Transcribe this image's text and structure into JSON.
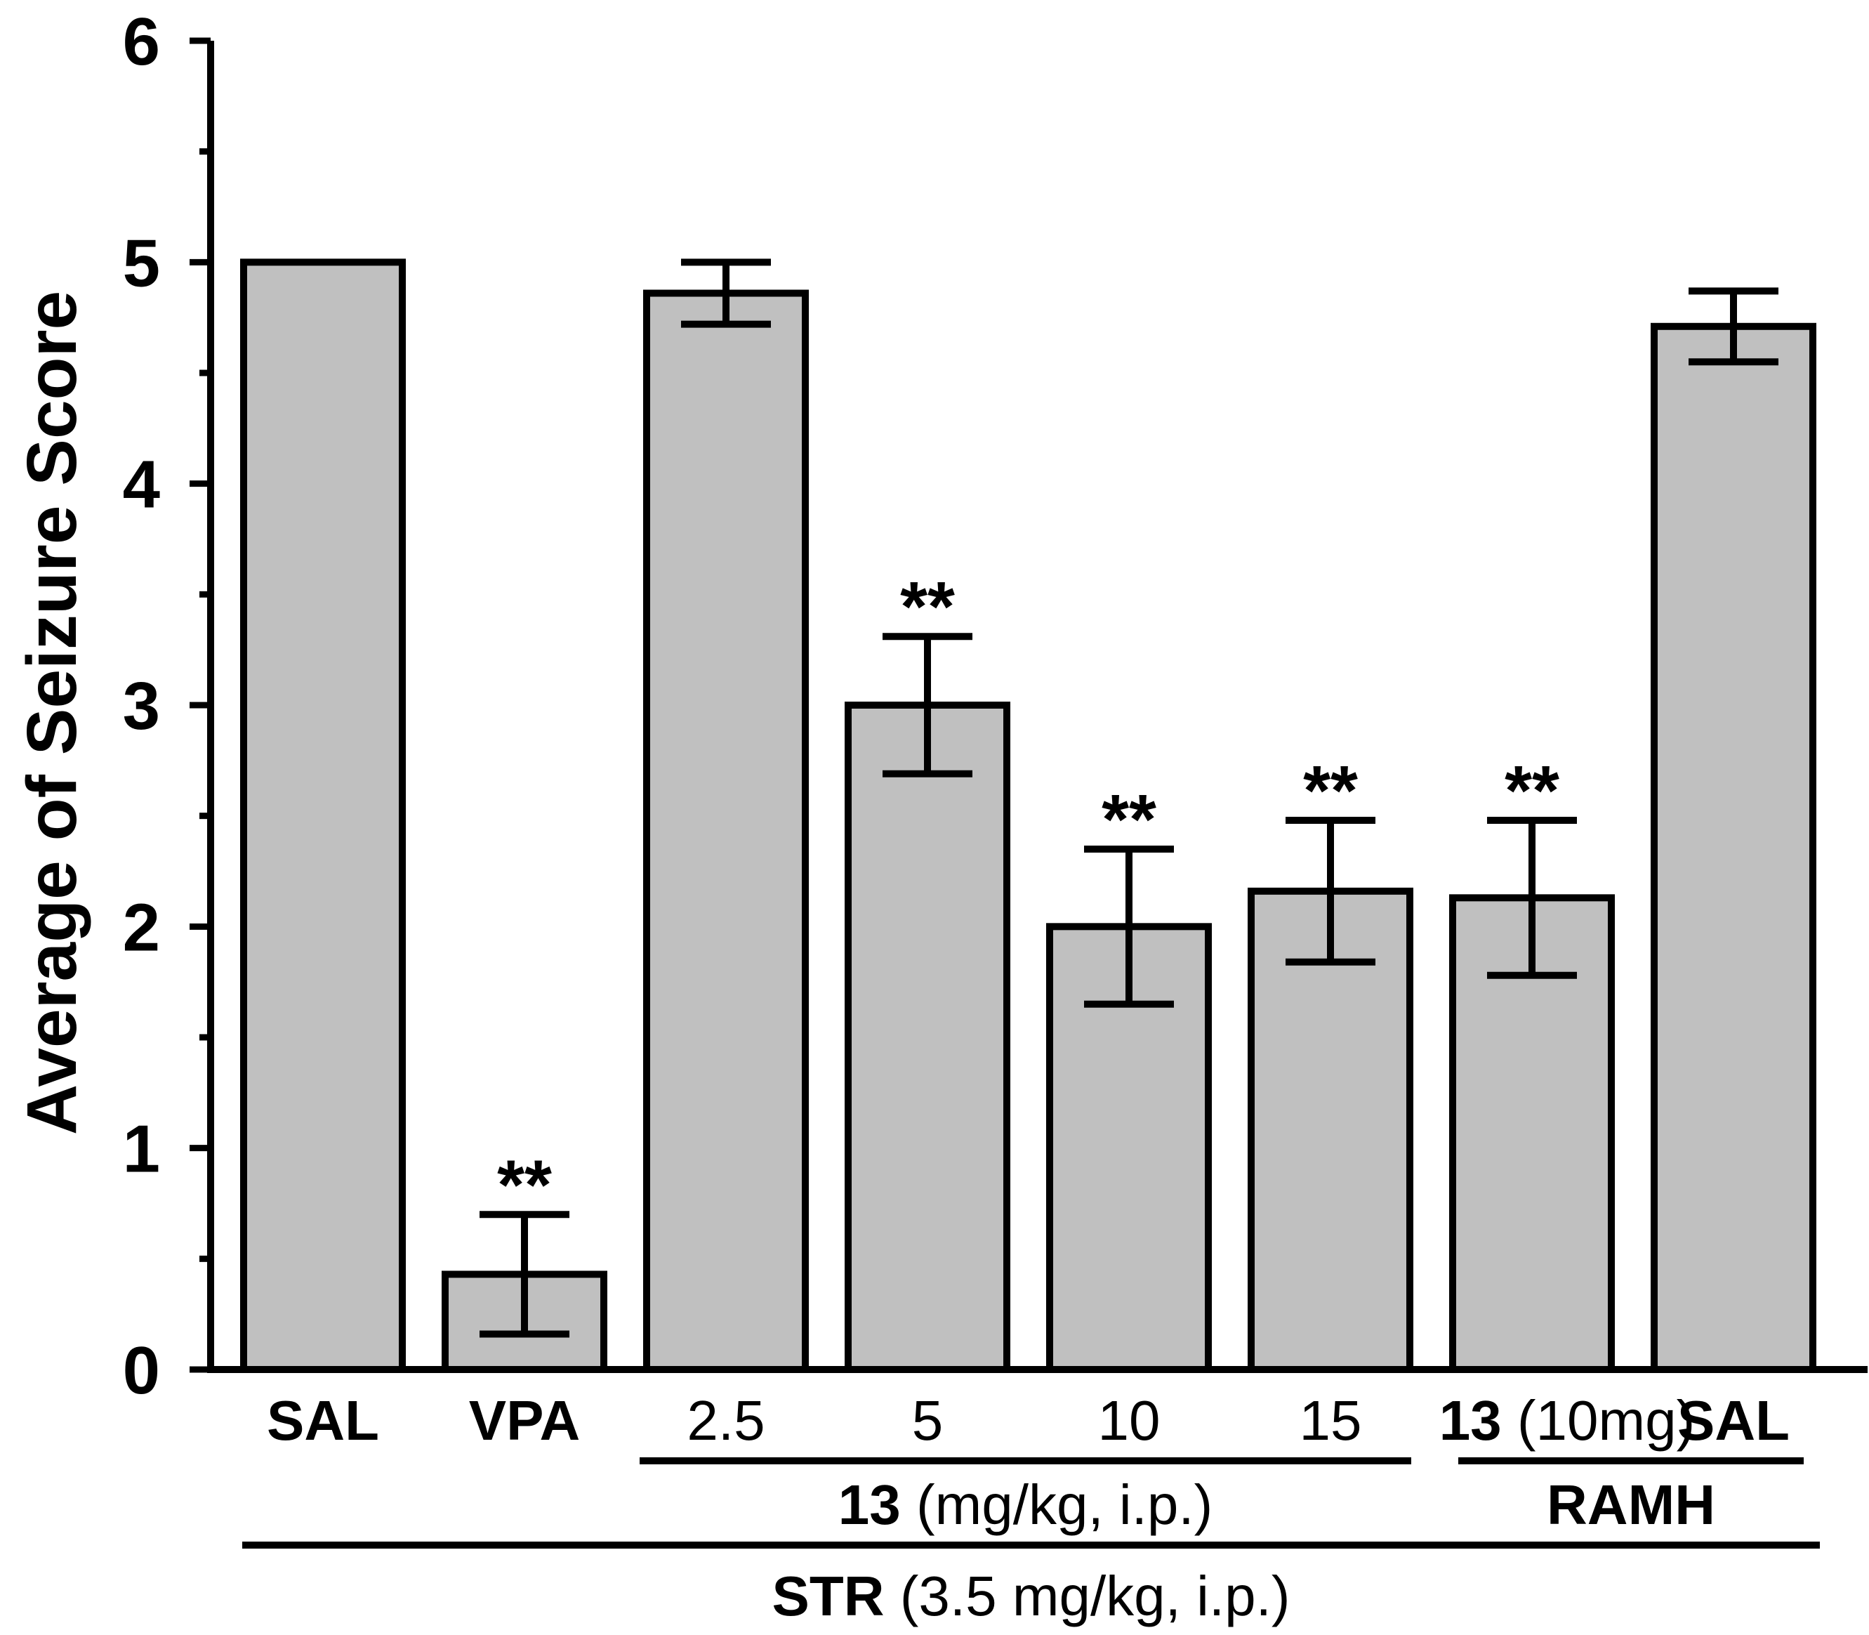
{
  "chart_data": {
    "type": "bar",
    "ylabel": "Average of Seizure Score",
    "ylim": [
      0,
      6
    ],
    "yticks": [
      0,
      1,
      2,
      3,
      4,
      5,
      6
    ],
    "bar_color": "#c0c0c0",
    "categories": [
      "SAL",
      "VPA",
      "2.5",
      "5",
      "10",
      "15",
      "13 (10mg)",
      "SAL"
    ],
    "values": [
      5.0,
      0.43,
      4.86,
      3.0,
      2.0,
      2.16,
      2.13,
      4.71
    ],
    "errors": [
      0,
      0.27,
      0.14,
      0.31,
      0.35,
      0.32,
      0.35,
      0.16
    ],
    "significance": [
      "",
      "**",
      "",
      "**",
      "**",
      "**",
      "**",
      ""
    ],
    "category_labels": [
      {
        "bold": "SAL",
        "normal": ""
      },
      {
        "bold": "VPA",
        "normal": ""
      },
      {
        "bold": "",
        "normal": "2.5"
      },
      {
        "bold": "",
        "normal": "5"
      },
      {
        "bold": "",
        "normal": "10"
      },
      {
        "bold": "",
        "normal": "15"
      },
      {
        "bold": "13",
        "normal": " (10mg)"
      },
      {
        "bold": "SAL",
        "normal": ""
      }
    ],
    "groups": [
      {
        "bold": "13",
        "normal": " (mg/kg, i.p.)",
        "from": 2,
        "to": 5
      },
      {
        "bold": "RAMH",
        "normal": "",
        "from": 6,
        "to": 7
      },
      {
        "bold": "STR",
        "normal": " (3.5 mg/kg, i.p.)",
        "from": 0,
        "to": 7
      }
    ]
  }
}
